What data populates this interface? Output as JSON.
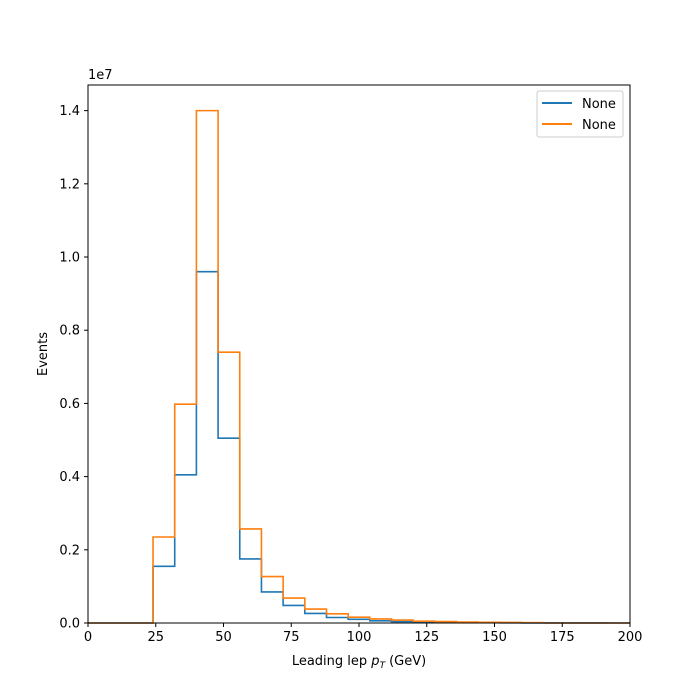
{
  "chart_data": {
    "type": "step",
    "xlabel": "Leading lep",
    "xlabel_math": "p",
    "xlabel_sub": "T",
    "xlabel_unit": "(GeV)",
    "ylabel": "Events",
    "y_offset_text": "1e7",
    "xlim": [
      0,
      200
    ],
    "ylim": [
      0,
      14700000
    ],
    "x_ticks": [
      0,
      25,
      50,
      75,
      100,
      125,
      150,
      175,
      200
    ],
    "y_ticks": [
      0,
      2000000,
      4000000,
      6000000,
      8000000,
      10000000,
      12000000,
      14000000
    ],
    "y_tick_labels": [
      "0.0",
      "0.2",
      "0.4",
      "0.6",
      "0.8",
      "1.0",
      "1.2",
      "1.4"
    ],
    "legend_position": "upper right",
    "bin_edges": [
      0,
      8,
      16,
      24,
      32,
      40,
      48,
      56,
      64,
      72,
      80,
      88,
      96,
      104,
      112,
      120,
      128,
      136,
      144,
      152,
      160,
      168,
      176,
      184,
      192,
      200
    ],
    "series": [
      {
        "name": "None",
        "color": "#1f77b4",
        "values": [
          0,
          0,
          0,
          1550000,
          4050000,
          9600000,
          5050000,
          1750000,
          850000,
          480000,
          260000,
          150000,
          100000,
          60000,
          40000,
          25000,
          15000,
          10000,
          7000,
          5000,
          3000,
          2000,
          1000,
          500,
          0
        ]
      },
      {
        "name": "None",
        "color": "#ff7f0e",
        "values": [
          0,
          0,
          0,
          2350000,
          5980000,
          14000000,
          7400000,
          2570000,
          1270000,
          680000,
          380000,
          250000,
          160000,
          110000,
          80000,
          50000,
          40000,
          25000,
          20000,
          15000,
          10000,
          0,
          0,
          0,
          0
        ]
      }
    ]
  }
}
